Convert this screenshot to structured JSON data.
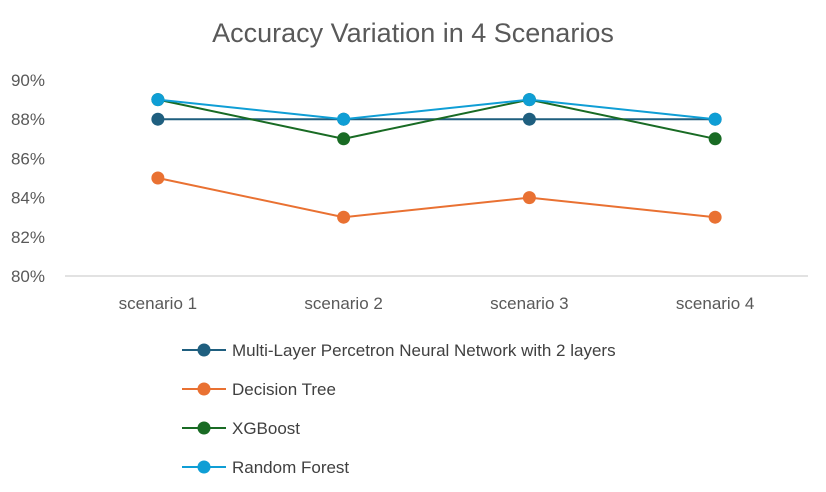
{
  "chart_data": {
    "type": "line",
    "title": "Accuracy Variation in 4 Scenarios",
    "categories": [
      "scenario 1",
      "scenario 2",
      "scenario 3",
      "scenario 4"
    ],
    "yticks": [
      "80%",
      "82%",
      "84%",
      "86%",
      "88%",
      "90%"
    ],
    "ylim": [
      80,
      90
    ],
    "grid": false,
    "legend_position": "bottom",
    "series": [
      {
        "name": "Multi-Layer Percetron Neural Network with 2 layers",
        "values": [
          88,
          88,
          88,
          88
        ],
        "color": "#1f5f7f"
      },
      {
        "name": "Decision Tree",
        "values": [
          85,
          83,
          84,
          83
        ],
        "color": "#e97132"
      },
      {
        "name": "XGBoost",
        "values": [
          89,
          87,
          89,
          87
        ],
        "color": "#196b24"
      },
      {
        "name": "Random Forest",
        "values": [
          89,
          88,
          89,
          88
        ],
        "color": "#0f9ed5"
      }
    ]
  }
}
